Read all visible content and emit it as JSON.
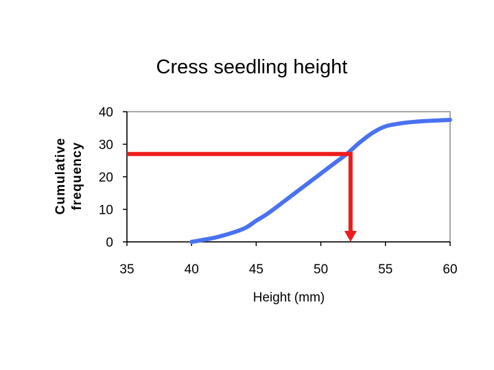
{
  "chart_data": {
    "type": "line",
    "title": "Cress seedling height",
    "xlabel": "Height (mm)",
    "ylabel_lines": [
      "Cumulative",
      "frequency"
    ],
    "xlim": [
      35,
      60
    ],
    "ylim": [
      0,
      40
    ],
    "x_ticks": [
      "35",
      "40",
      "45",
      "50",
      "55",
      "60"
    ],
    "y_ticks": [
      "0",
      "10",
      "20",
      "30",
      "40"
    ],
    "grid": false,
    "series": [
      {
        "color": "#4a72f0",
        "x": [
          40,
          42,
          44,
          45,
          46,
          48,
          50,
          51,
          52,
          53,
          54,
          55,
          56,
          57,
          58,
          60
        ],
        "y": [
          0,
          1.5,
          4,
          6.5,
          9,
          15,
          21,
          24,
          27,
          30.5,
          33.5,
          35.5,
          36.3,
          36.8,
          37.1,
          37.5
        ]
      }
    ],
    "annotations": [
      {
        "type": "horizontal-line",
        "y": 27,
        "x_from": 35,
        "x_to": 52.3,
        "color": "#ee1c1c"
      },
      {
        "type": "vertical-arrow",
        "x": 52.3,
        "y_from": 27,
        "y_to": 0,
        "color": "#ee1c1c"
      }
    ]
  }
}
